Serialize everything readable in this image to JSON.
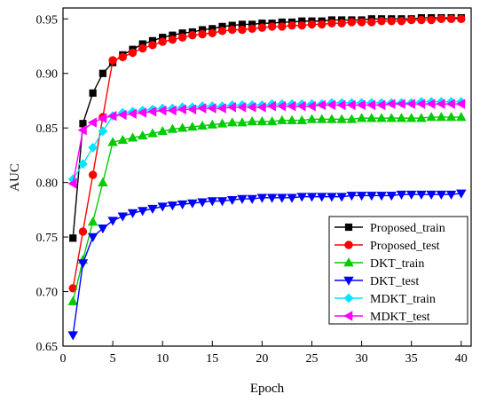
{
  "chart_data": {
    "type": "line",
    "title": "",
    "xlabel": "Epoch",
    "ylabel": "AUC",
    "xlim": [
      0,
      41
    ],
    "ylim": [
      0.65,
      0.96
    ],
    "xticks": [
      "0",
      "5",
      "10",
      "15",
      "20",
      "25",
      "30",
      "35",
      "40"
    ],
    "yticks": [
      "0.65",
      "0.70",
      "0.75",
      "0.80",
      "0.85",
      "0.90",
      "0.95"
    ],
    "legend_position": "lower-right",
    "grid": false,
    "x": [
      1,
      2,
      3,
      4,
      5,
      6,
      7,
      8,
      9,
      10,
      11,
      12,
      13,
      14,
      15,
      16,
      17,
      18,
      19,
      20,
      21,
      22,
      23,
      24,
      25,
      26,
      27,
      28,
      29,
      30,
      31,
      32,
      33,
      34,
      35,
      36,
      37,
      38,
      39,
      40
    ],
    "series": [
      {
        "name": "Proposed_train",
        "color": "#000000",
        "marker": "square",
        "values": [
          0.749,
          0.854,
          0.882,
          0.9,
          0.91,
          0.917,
          0.922,
          0.927,
          0.93,
          0.933,
          0.935,
          0.937,
          0.938,
          0.94,
          0.941,
          0.943,
          0.944,
          0.945,
          0.945,
          0.946,
          0.946,
          0.947,
          0.947,
          0.948,
          0.948,
          0.948,
          0.949,
          0.949,
          0.949,
          0.949,
          0.95,
          0.95,
          0.95,
          0.95,
          0.95,
          0.951,
          0.951,
          0.951,
          0.951,
          0.951
        ]
      },
      {
        "name": "Proposed_test",
        "color": "#ff0000",
        "marker": "circle",
        "values": [
          0.703,
          0.755,
          0.807,
          0.86,
          0.912,
          0.915,
          0.919,
          0.923,
          0.926,
          0.929,
          0.931,
          0.933,
          0.935,
          0.936,
          0.937,
          0.939,
          0.94,
          0.94,
          0.941,
          0.942,
          0.943,
          0.943,
          0.944,
          0.944,
          0.945,
          0.945,
          0.946,
          0.946,
          0.947,
          0.947,
          0.947,
          0.948,
          0.948,
          0.948,
          0.949,
          0.949,
          0.949,
          0.95,
          0.95,
          0.95
        ]
      },
      {
        "name": "DKT_train",
        "color": "#00cc00",
        "marker": "triangle-up",
        "values": [
          0.691,
          0.729,
          0.764,
          0.8,
          0.837,
          0.839,
          0.841,
          0.843,
          0.845,
          0.847,
          0.849,
          0.85,
          0.851,
          0.852,
          0.853,
          0.854,
          0.855,
          0.855,
          0.856,
          0.856,
          0.856,
          0.857,
          0.857,
          0.857,
          0.858,
          0.858,
          0.858,
          0.858,
          0.858,
          0.859,
          0.859,
          0.859,
          0.859,
          0.859,
          0.859,
          0.859,
          0.86,
          0.86,
          0.86,
          0.86
        ]
      },
      {
        "name": "DKT_test",
        "color": "#0000ff",
        "marker": "triangle-down",
        "values": [
          0.66,
          0.726,
          0.75,
          0.758,
          0.765,
          0.769,
          0.772,
          0.774,
          0.776,
          0.778,
          0.779,
          0.78,
          0.781,
          0.782,
          0.783,
          0.783,
          0.784,
          0.785,
          0.785,
          0.786,
          0.786,
          0.786,
          0.786,
          0.787,
          0.787,
          0.787,
          0.787,
          0.787,
          0.788,
          0.788,
          0.788,
          0.788,
          0.788,
          0.789,
          0.789,
          0.789,
          0.789,
          0.789,
          0.789,
          0.79
        ]
      },
      {
        "name": "MDKT_train",
        "color": "#00e5ff",
        "marker": "diamond",
        "values": [
          0.803,
          0.817,
          0.832,
          0.847,
          0.861,
          0.864,
          0.865,
          0.866,
          0.867,
          0.868,
          0.868,
          0.869,
          0.869,
          0.87,
          0.87,
          0.87,
          0.871,
          0.871,
          0.871,
          0.871,
          0.872,
          0.872,
          0.872,
          0.872,
          0.872,
          0.872,
          0.873,
          0.873,
          0.873,
          0.873,
          0.873,
          0.873,
          0.873,
          0.873,
          0.873,
          0.874,
          0.874,
          0.874,
          0.874,
          0.874
        ]
      },
      {
        "name": "MDKT_test",
        "color": "#ff00ff",
        "marker": "triangle-left",
        "values": [
          0.799,
          0.848,
          0.855,
          0.859,
          0.861,
          0.862,
          0.863,
          0.864,
          0.865,
          0.866,
          0.866,
          0.867,
          0.867,
          0.868,
          0.868,
          0.868,
          0.869,
          0.869,
          0.869,
          0.869,
          0.87,
          0.87,
          0.87,
          0.87,
          0.87,
          0.871,
          0.871,
          0.871,
          0.871,
          0.871,
          0.871,
          0.871,
          0.872,
          0.872,
          0.872,
          0.872,
          0.872,
          0.872,
          0.872,
          0.872
        ]
      }
    ]
  }
}
